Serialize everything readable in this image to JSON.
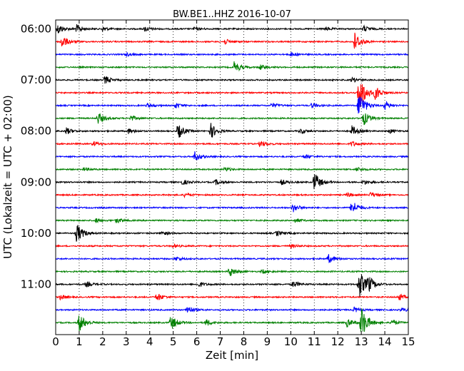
{
  "chart_data": {
    "type": "line",
    "title": "BW.BE1..HHZ 2016-10-07",
    "xlabel": "Zeit  [min]",
    "ylabel": "UTC (Lokalzeit = UTC + 02:00)",
    "xlim": [
      0,
      15
    ],
    "x_ticks": [
      "0",
      "1",
      "2",
      "3",
      "4",
      "5",
      "6",
      "7",
      "8",
      "9",
      "10",
      "11",
      "12",
      "13",
      "14",
      "15"
    ],
    "y_ticks": [
      "06:00",
      "07:00",
      "08:00",
      "09:00",
      "10:00",
      "11:00"
    ],
    "grid": "vertical dotted at each minute",
    "trace_colors": [
      "#000000",
      "#ff0000",
      "#0000ff",
      "#008000"
    ],
    "series": [
      {
        "start": "06:00",
        "bursts": [
          [
            0.1,
            0.6
          ],
          [
            0.9,
            0.5
          ],
          [
            2.0,
            0.25
          ],
          [
            3.8,
            0.3
          ],
          [
            5.9,
            0.2
          ],
          [
            11.5,
            0.2
          ],
          [
            13.1,
            0.35
          ]
        ]
      },
      {
        "start": "06:15",
        "bursts": [
          [
            0.25,
            0.8
          ],
          [
            7.2,
            0.3
          ],
          [
            12.7,
            1.2
          ]
        ]
      },
      {
        "start": "06:30",
        "bursts": [
          [
            3.0,
            0.2
          ],
          [
            10.0,
            0.25
          ]
        ]
      },
      {
        "start": "06:45",
        "bursts": [
          [
            7.6,
            0.7
          ],
          [
            8.7,
            0.3
          ]
        ]
      },
      {
        "start": "07:00",
        "bursts": [
          [
            2.1,
            0.5
          ],
          [
            12.6,
            0.3
          ]
        ]
      },
      {
        "start": "07:15",
        "bursts": [
          [
            12.9,
            2.5
          ],
          [
            13.6,
            0.8
          ]
        ]
      },
      {
        "start": "07:30",
        "bursts": [
          [
            3.9,
            0.25
          ],
          [
            5.1,
            0.3
          ],
          [
            9.2,
            0.3
          ],
          [
            10.9,
            0.3
          ],
          [
            12.9,
            1.8
          ],
          [
            14.0,
            0.5
          ]
        ]
      },
      {
        "start": "07:45",
        "bursts": [
          [
            1.8,
            0.7
          ],
          [
            3.2,
            0.3
          ],
          [
            13.1,
            0.8
          ]
        ]
      },
      {
        "start": "08:00",
        "bursts": [
          [
            0.45,
            0.4
          ],
          [
            3.1,
            0.3
          ],
          [
            5.2,
            0.9
          ],
          [
            6.6,
            0.9
          ],
          [
            10.4,
            0.3
          ],
          [
            12.6,
            0.6
          ],
          [
            14.2,
            0.25
          ]
        ]
      },
      {
        "start": "08:15",
        "bursts": [
          [
            1.6,
            0.3
          ],
          [
            8.7,
            0.4
          ],
          [
            12.6,
            0.3
          ]
        ]
      },
      {
        "start": "08:30",
        "bursts": [
          [
            5.9,
            0.6
          ],
          [
            10.6,
            0.25
          ]
        ]
      },
      {
        "start": "08:45",
        "bursts": [
          [
            1.2,
            0.2
          ],
          [
            7.2,
            0.25
          ],
          [
            12.8,
            0.25
          ]
        ]
      },
      {
        "start": "09:00",
        "bursts": [
          [
            5.4,
            0.3
          ],
          [
            6.8,
            0.3
          ],
          [
            9.6,
            0.3
          ],
          [
            11.0,
            1.2
          ],
          [
            13.1,
            0.3
          ]
        ]
      },
      {
        "start": "09:15",
        "bursts": [
          [
            5.5,
            0.25
          ],
          [
            12.4,
            0.25
          ],
          [
            13.4,
            0.3
          ]
        ]
      },
      {
        "start": "09:30",
        "bursts": [
          [
            10.1,
            0.5
          ],
          [
            12.6,
            0.9
          ]
        ]
      },
      {
        "start": "09:45",
        "bursts": [
          [
            1.7,
            0.25
          ],
          [
            2.6,
            0.3
          ],
          [
            10.2,
            0.25
          ]
        ]
      },
      {
        "start": "10:00",
        "bursts": [
          [
            0.9,
            1.2
          ],
          [
            4.5,
            0.25
          ],
          [
            9.4,
            0.3
          ]
        ]
      },
      {
        "start": "10:15",
        "bursts": [
          [
            5.0,
            0.2
          ],
          [
            10.0,
            0.2
          ]
        ]
      },
      {
        "start": "10:30",
        "bursts": [
          [
            5.1,
            0.25
          ],
          [
            11.6,
            0.5
          ]
        ]
      },
      {
        "start": "10:45",
        "bursts": [
          [
            7.4,
            0.6
          ],
          [
            8.8,
            0.25
          ]
        ]
      },
      {
        "start": "11:00",
        "bursts": [
          [
            1.3,
            0.3
          ],
          [
            6.1,
            0.3
          ],
          [
            10.1,
            0.4
          ],
          [
            12.9,
            1.8
          ],
          [
            13.3,
            0.8
          ]
        ]
      },
      {
        "start": "11:15",
        "bursts": [
          [
            0.2,
            0.3
          ],
          [
            4.3,
            0.5
          ],
          [
            14.6,
            0.4
          ]
        ]
      },
      {
        "start": "11:30",
        "bursts": [
          [
            5.6,
            0.5
          ],
          [
            12.7,
            0.3
          ],
          [
            14.7,
            0.25
          ]
        ]
      },
      {
        "start": "11:45",
        "bursts": [
          [
            1.0,
            1.1
          ],
          [
            4.9,
            0.9
          ],
          [
            6.4,
            0.4
          ],
          [
            12.4,
            0.5
          ],
          [
            13.0,
            2.0
          ],
          [
            14.3,
            0.4
          ]
        ]
      }
    ]
  }
}
